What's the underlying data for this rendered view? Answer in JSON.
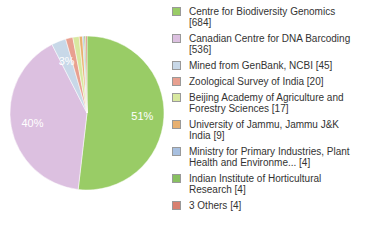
{
  "chart_data": {
    "type": "pie",
    "categories": [
      "Centre for Biodiversity Genomics [684]",
      "Canadian Centre for DNA Barcoding [536]",
      "Mined from GenBank, NCBI [45]",
      "Zoological Survey of India [20]",
      "Beijing Academy of Agriculture and Forestry Sciences [17]",
      "University of Jammu, Jammu J&K India [9]",
      "Ministry for Primary Industries, Plant Health and Environme... [4]",
      "Indian Institute of Horticultural Research [4]",
      "3 Others [4]"
    ],
    "values": [
      51,
      40,
      3,
      1.5,
      1.3,
      0.7,
      0.3,
      0.3,
      0.3
    ],
    "value_labels": [
      "51%",
      "40%",
      "3%",
      null,
      null,
      null,
      null,
      null,
      null
    ],
    "colors": [
      "#99cc66",
      "#dcc0e0",
      "#c8d8e8",
      "#e8a090",
      "#d8e8a0",
      "#e8b070",
      "#a8c0e0",
      "#88c060",
      "#d88070"
    ],
    "data_labels": true,
    "legend": "right"
  }
}
